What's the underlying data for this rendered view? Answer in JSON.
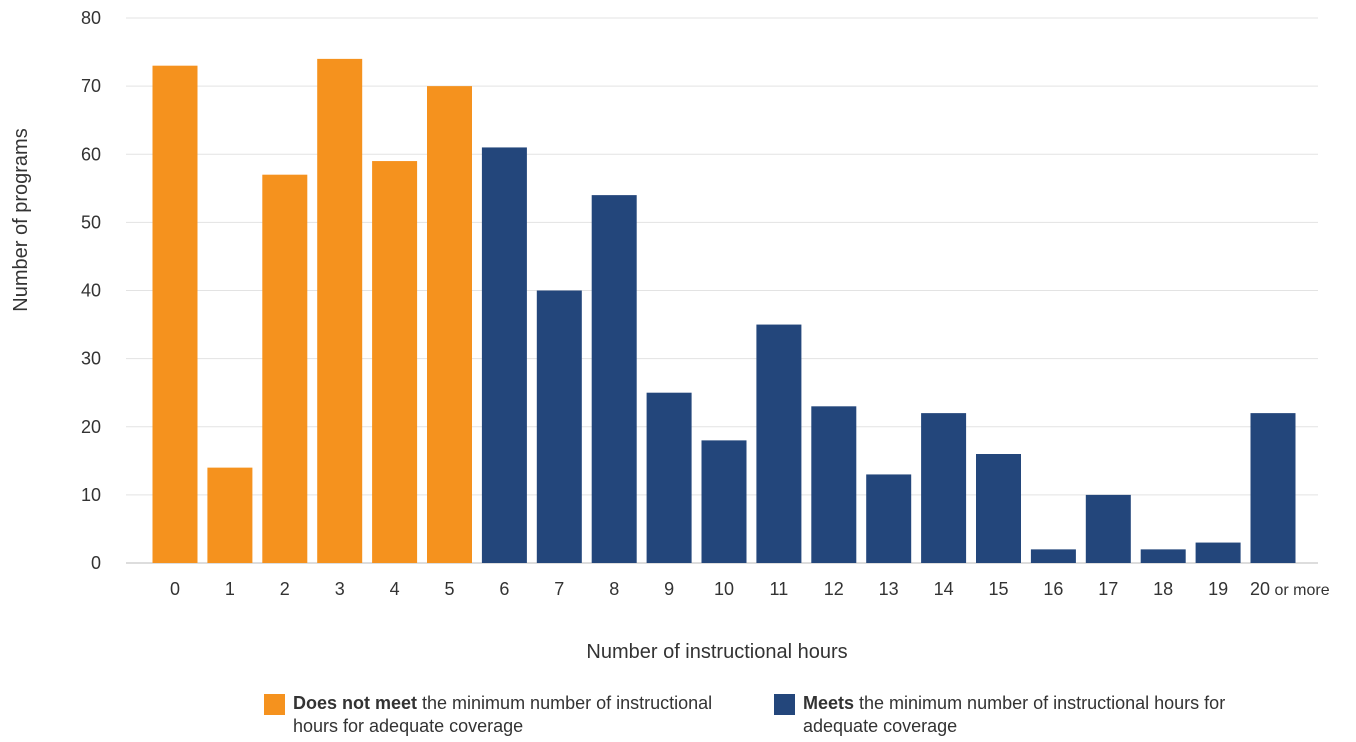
{
  "chart_data": {
    "type": "bar",
    "categories": [
      "0",
      "1",
      "2",
      "3",
      "4",
      "5",
      "6",
      "7",
      "8",
      "9",
      "10",
      "11",
      "12",
      "13",
      "14",
      "15",
      "16",
      "17",
      "18",
      "19",
      "20 or more"
    ],
    "values": [
      73,
      14,
      57,
      74,
      59,
      70,
      61,
      40,
      54,
      25,
      18,
      35,
      23,
      13,
      22,
      16,
      2,
      10,
      2,
      3,
      22
    ],
    "groups": [
      "not_meet",
      "not_meet",
      "not_meet",
      "not_meet",
      "not_meet",
      "not_meet",
      "meets",
      "meets",
      "meets",
      "meets",
      "meets",
      "meets",
      "meets",
      "meets",
      "meets",
      "meets",
      "meets",
      "meets",
      "meets",
      "meets",
      "meets"
    ],
    "title": "",
    "xlabel": "Number of instructional hours",
    "ylabel": "Number of programs",
    "ylim": [
      0,
      80
    ],
    "yticks": [
      0,
      10,
      20,
      30,
      40,
      50,
      60,
      70,
      80
    ],
    "grid": true,
    "legend_position": "bottom",
    "colors": {
      "not_meet": "#F5921E",
      "meets": "#23467B",
      "grid": "#E3E3E3",
      "axis": "#BBBBBB"
    },
    "legend": [
      {
        "key": "not_meet",
        "bold": "Does not meet",
        "rest": " the minimum number of instructional hours for adequate coverage"
      },
      {
        "key": "meets",
        "bold": "Meets",
        "rest": " the minimum number of instructional hours for adequate coverage"
      }
    ]
  }
}
